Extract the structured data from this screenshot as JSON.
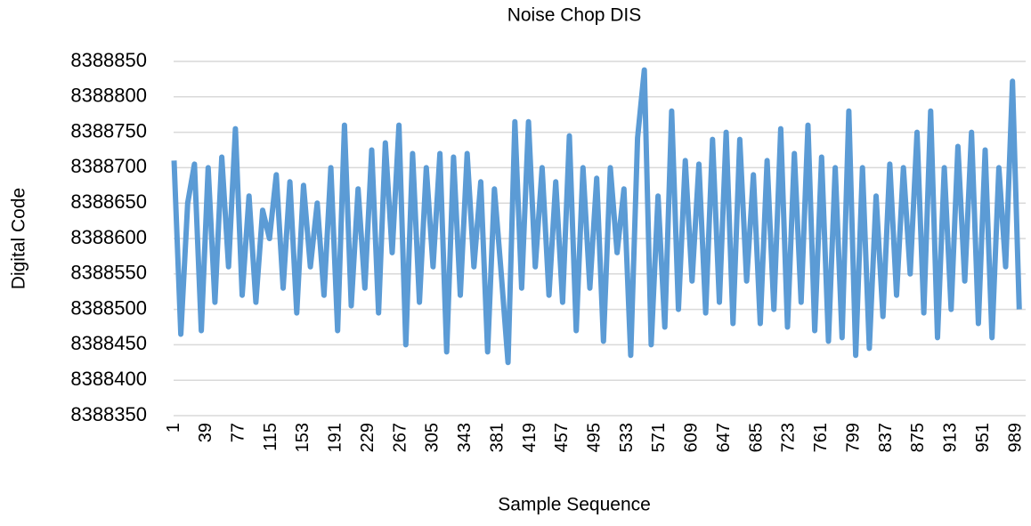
{
  "chart_data": {
    "type": "line",
    "title": "Noise Chop DIS",
    "x_label": "Sample Sequence",
    "y_label": "Digital Code",
    "color": "#5b9bd5",
    "grid": true,
    "xlim": [
      0.5,
      1000.5
    ],
    "xticks": [
      1,
      39,
      77,
      115,
      153,
      191,
      229,
      267,
      305,
      343,
      381,
      419,
      457,
      495,
      533,
      571,
      609,
      647,
      685,
      723,
      761,
      799,
      837,
      875,
      913,
      951,
      989
    ],
    "ylim": [
      8388350,
      8388850
    ],
    "yticks": [
      8388350,
      8388400,
      8388450,
      8388500,
      8388550,
      8388600,
      8388650,
      8388700,
      8388750,
      8388800,
      8388850
    ],
    "x": [
      1,
      9,
      17,
      25,
      33,
      41,
      49,
      57,
      65,
      73,
      81,
      89,
      97,
      105,
      113,
      121,
      129,
      137,
      145,
      153,
      161,
      169,
      177,
      185,
      193,
      201,
      209,
      217,
      225,
      233,
      241,
      249,
      257,
      265,
      273,
      281,
      289,
      297,
      305,
      313,
      321,
      329,
      337,
      345,
      353,
      361,
      369,
      377,
      385,
      393,
      401,
      409,
      417,
      425,
      433,
      441,
      449,
      457,
      465,
      473,
      481,
      489,
      497,
      505,
      513,
      521,
      529,
      537,
      545,
      553,
      561,
      569,
      577,
      585,
      593,
      601,
      609,
      617,
      625,
      633,
      641,
      649,
      657,
      665,
      673,
      681,
      689,
      697,
      705,
      713,
      721,
      729,
      737,
      745,
      753,
      761,
      769,
      777,
      785,
      793,
      801,
      809,
      817,
      825,
      833,
      841,
      849,
      857,
      865,
      873,
      881,
      889,
      897,
      905,
      913,
      921,
      929,
      937,
      945,
      953,
      961,
      969,
      977,
      985,
      993
    ],
    "values": [
      8388710,
      8388465,
      8388650,
      8388705,
      8388470,
      8388700,
      8388510,
      8388715,
      8388560,
      8388755,
      8388520,
      8388660,
      8388510,
      8388640,
      8388600,
      8388690,
      8388530,
      8388680,
      8388495,
      8388675,
      8388560,
      8388650,
      8388520,
      8388700,
      8388470,
      8388760,
      8388505,
      8388670,
      8388530,
      8388725,
      8388495,
      8388735,
      8388580,
      8388760,
      8388450,
      8388720,
      8388510,
      8388700,
      8388560,
      8388720,
      8388440,
      8388715,
      8388520,
      8388720,
      8388560,
      8388680,
      8388440,
      8388670,
      8388550,
      8388425,
      8388765,
      8388530,
      8388765,
      8388560,
      8388700,
      8388520,
      8388680,
      8388510,
      8388745,
      8388470,
      8388700,
      8388530,
      8388685,
      8388455,
      8388700,
      8388580,
      8388670,
      8388435,
      8388742,
      8388838,
      8388450,
      8388660,
      8388475,
      8388780,
      8388500,
      8388710,
      8388540,
      8388705,
      8388495,
      8388740,
      8388510,
      8388750,
      8388480,
      8388740,
      8388540,
      8388690,
      8388480,
      8388710,
      8388500,
      8388755,
      8388475,
      8388720,
      8388510,
      8388760,
      8388470,
      8388715,
      8388455,
      8388700,
      8388460,
      8388780,
      8388435,
      8388700,
      8388445,
      8388660,
      8388490,
      8388705,
      8388520,
      8388700,
      8388550,
      8388750,
      8388495,
      8388780,
      8388460,
      8388700,
      8388500,
      8388730,
      8388540,
      8388750,
      8388480,
      8388725,
      8388460,
      8388700,
      8388560,
      8388822,
      8388500
    ]
  }
}
